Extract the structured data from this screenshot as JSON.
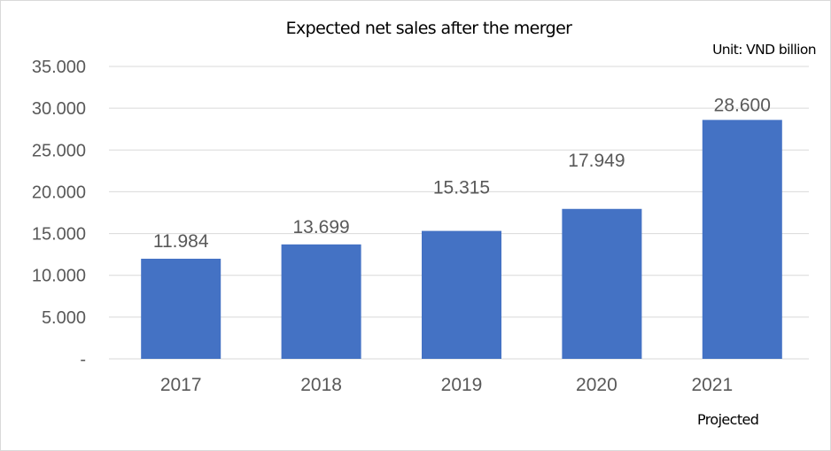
{
  "chart_data": {
    "type": "bar",
    "title": "Expected net sales after the merger",
    "unit": "Unit: VND billion",
    "note": "Projected",
    "categories": [
      "2017",
      "2018",
      "2019",
      "2020",
      "2021"
    ],
    "values": [
      11984,
      13699,
      15315,
      17949,
      28600
    ],
    "value_labels": [
      "11.984",
      "13.699",
      "15.315",
      "17.949",
      "28.600"
    ],
    "y_ticks": [
      0,
      5000,
      10000,
      15000,
      20000,
      25000,
      30000,
      35000
    ],
    "y_tick_labels": [
      "-",
      "5.000",
      "10.000",
      "15.000",
      "20.000",
      "25.000",
      "30.000",
      "35.000"
    ],
    "ylim": [
      0,
      35000
    ],
    "grid": true,
    "bar_color": "#4472C4",
    "gridline_color": "#d9d9d9"
  }
}
